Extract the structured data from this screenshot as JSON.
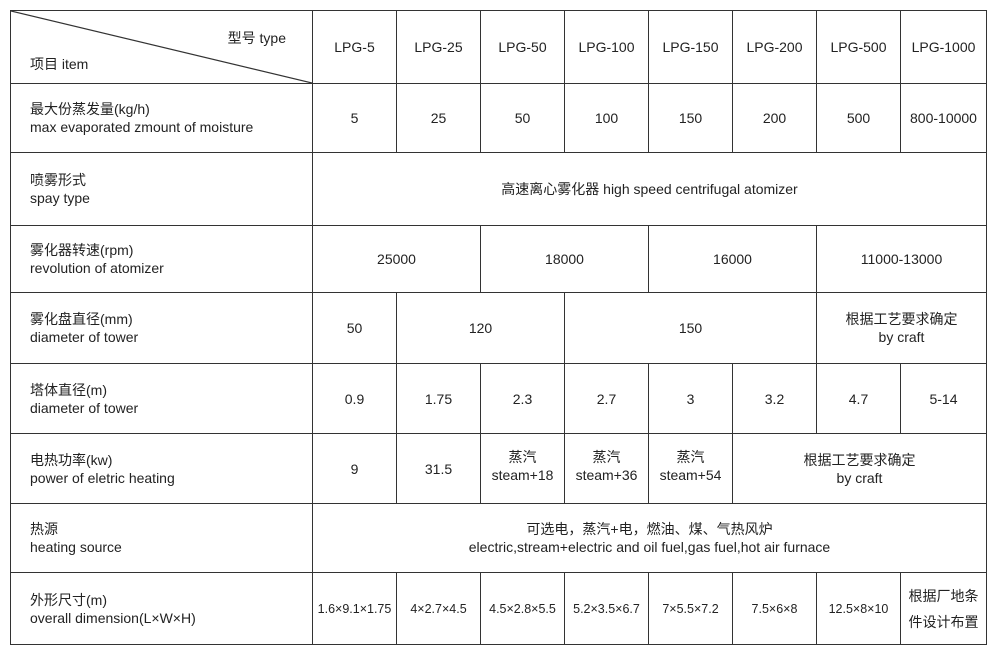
{
  "header": {
    "type_label": "型号 type",
    "item_label": "项目 item",
    "models": [
      "LPG-5",
      "LPG-25",
      "LPG-50",
      "LPG-100",
      "LPG-150",
      "LPG-200",
      "LPG-500",
      "LPG-1000"
    ]
  },
  "rows": {
    "evaporation": {
      "label_cn": "最大份蒸发量(kg/h)",
      "label_en": "max evaporated zmount of moisture",
      "values": [
        "5",
        "25",
        "50",
        "100",
        "150",
        "200",
        "500",
        "800-10000"
      ]
    },
    "spray_type": {
      "label_cn": "喷雾形式",
      "label_en": "spay type",
      "value": "高速离心雾化器 high speed centrifugal atomizer"
    },
    "atomizer_speed": {
      "label_cn": "雾化器转速(rpm)",
      "label_en": "revolution of atomizer",
      "values": [
        "25000",
        "18000",
        "16000",
        "11000-13000"
      ]
    },
    "disc_diameter": {
      "label_cn": "雾化盘直径(mm)",
      "label_en": "diameter of tower",
      "values": [
        "50",
        "120",
        "150"
      ],
      "craft_cn": "根据工艺要求确定",
      "craft_en": "by craft"
    },
    "tower_diameter": {
      "label_cn": "塔体直径(m)",
      "label_en": "diameter of tower",
      "values": [
        "0.9",
        "1.75",
        "2.3",
        "2.7",
        "3",
        "3.2",
        "4.7",
        "5-14"
      ]
    },
    "heating_power": {
      "label_cn": "电热功率(kw)",
      "label_en": "power of eletric heating",
      "values": [
        "9",
        "31.5"
      ],
      "steam": [
        {
          "cn": "蒸汽",
          "en": "steam+18"
        },
        {
          "cn": "蒸汽",
          "en": "steam+36"
        },
        {
          "cn": "蒸汽",
          "en": "steam+54"
        }
      ],
      "craft_cn": "根据工艺要求确定",
      "craft_en": "by craft"
    },
    "heating_source": {
      "label_cn": "热源",
      "label_en": "heating source",
      "value_cn": "可选电，蒸汽+电，燃油、煤、气热风炉",
      "value_en": "electric,stream+electric and oil fuel,gas fuel,hot air furnace"
    },
    "dimension": {
      "label_cn": "外形尺寸(m)",
      "label_en": "overall dimension(L×W×H)",
      "values": [
        "1.6×9.1×1.75",
        "4×2.7×4.5",
        "4.5×2.8×5.5",
        "5.2×3.5×6.7",
        "7×5.5×7.2",
        "7.5×6×8",
        "12.5×8×10"
      ],
      "last": "根据厂地条件设计布置"
    }
  }
}
